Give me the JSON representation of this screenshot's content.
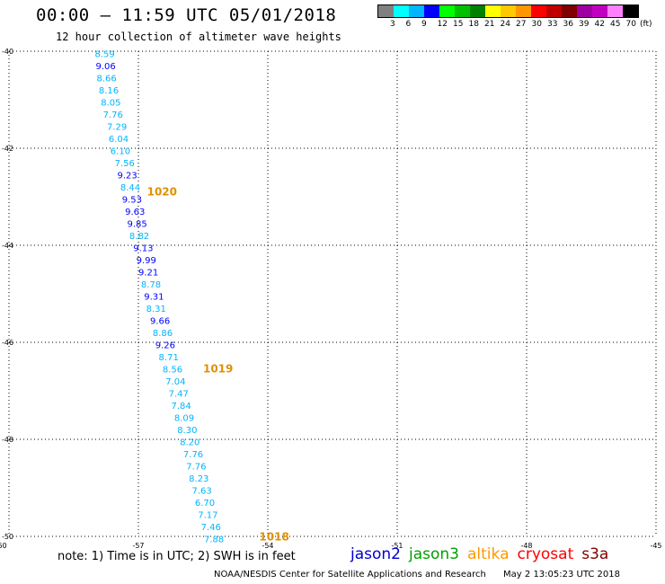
{
  "header": {
    "title": "00:00 – 11:59 UTC 05/01/2018",
    "subtitle": "12 hour collection of altimeter wave heights"
  },
  "colorbar": {
    "colors": [
      "#808080",
      "#00ffff",
      "#00b4ff",
      "#0000ff",
      "#00ff00",
      "#00c000",
      "#008000",
      "#ffff00",
      "#ffc800",
      "#ff9600",
      "#ff0000",
      "#c00000",
      "#800000",
      "#a000a0",
      "#c000c0",
      "#ff80ff",
      "#000000"
    ],
    "labels": [
      "3",
      "6",
      "9",
      "12",
      "15",
      "18",
      "21",
      "24",
      "27",
      "30",
      "33",
      "36",
      "39",
      "42",
      "45",
      "70"
    ],
    "unit": "(ft)"
  },
  "chart_data": {
    "type": "scatter",
    "title": "12 hour collection of altimeter wave heights",
    "xlabel": "",
    "ylabel": "",
    "xlim": [
      -60,
      -45
    ],
    "ylim": [
      -50,
      -40
    ],
    "x_ticks": [
      "-60",
      "-57",
      "-54",
      "-51",
      "-48",
      "-45"
    ],
    "y_ticks": [
      "-40",
      "-42",
      "-44",
      "-46",
      "-48",
      "-50"
    ],
    "grid": true,
    "series": [
      {
        "name": "jason2",
        "points": [
          {
            "x": -58.01,
            "y": -40.05,
            "v": "8.59",
            "c": "#00b4ff"
          },
          {
            "x": -57.99,
            "y": -40.3,
            "v": "9.06",
            "c": "#0000ff"
          },
          {
            "x": -57.97,
            "y": -40.55,
            "v": "8.66",
            "c": "#00b4ff"
          },
          {
            "x": -57.92,
            "y": -40.8,
            "v": "8.16",
            "c": "#00b4ff"
          },
          {
            "x": -57.87,
            "y": -41.05,
            "v": "8.05",
            "c": "#00b4ff"
          },
          {
            "x": -57.82,
            "y": -41.3,
            "v": "7.76",
            "c": "#00b4ff"
          },
          {
            "x": -57.73,
            "y": -41.55,
            "v": "7.29",
            "c": "#00b4ff"
          },
          {
            "x": -57.69,
            "y": -41.8,
            "v": "6.04",
            "c": "#00b4ff"
          },
          {
            "x": -57.65,
            "y": -42.05,
            "v": "6.10",
            "c": "#00b4ff"
          },
          {
            "x": -57.55,
            "y": -42.3,
            "v": "7.56",
            "c": "#00b4ff"
          },
          {
            "x": -57.49,
            "y": -42.55,
            "v": "9.23",
            "c": "#0000ff"
          },
          {
            "x": -57.42,
            "y": -42.8,
            "v": "8.44",
            "c": "#00b4ff"
          },
          {
            "x": -57.38,
            "y": -43.05,
            "v": "9.53",
            "c": "#0000ff"
          },
          {
            "x": -57.31,
            "y": -43.3,
            "v": "9.63",
            "c": "#0000ff"
          },
          {
            "x": -57.26,
            "y": -43.55,
            "v": "9.85",
            "c": "#0000ff"
          },
          {
            "x": -57.21,
            "y": -43.8,
            "v": "8.82",
            "c": "#00b4ff"
          },
          {
            "x": -57.12,
            "y": -44.05,
            "v": "9.13",
            "c": "#0000ff"
          },
          {
            "x": -57.05,
            "y": -44.3,
            "v": "9.99",
            "c": "#0000ff"
          },
          {
            "x": -57.0,
            "y": -44.55,
            "v": "9.21",
            "c": "#0000ff"
          },
          {
            "x": -56.94,
            "y": -44.8,
            "v": "8.78",
            "c": "#00b4ff"
          },
          {
            "x": -56.87,
            "y": -45.05,
            "v": "9.31",
            "c": "#0000ff"
          },
          {
            "x": -56.82,
            "y": -45.3,
            "v": "8.31",
            "c": "#00b4ff"
          },
          {
            "x": -56.73,
            "y": -45.55,
            "v": "9.66",
            "c": "#0000ff"
          },
          {
            "x": -56.67,
            "y": -45.8,
            "v": "8.86",
            "c": "#00b4ff"
          },
          {
            "x": -56.61,
            "y": -46.05,
            "v": "9.26",
            "c": "#0000ff"
          },
          {
            "x": -56.53,
            "y": -46.3,
            "v": "8.71",
            "c": "#00b4ff"
          },
          {
            "x": -56.44,
            "y": -46.55,
            "v": "8.56",
            "c": "#00b4ff"
          },
          {
            "x": -56.37,
            "y": -46.8,
            "v": "7.04",
            "c": "#00b4ff"
          },
          {
            "x": -56.3,
            "y": -47.05,
            "v": "7.47",
            "c": "#00b4ff"
          },
          {
            "x": -56.24,
            "y": -47.3,
            "v": "7.84",
            "c": "#00b4ff"
          },
          {
            "x": -56.17,
            "y": -47.55,
            "v": "8.09",
            "c": "#00b4ff"
          },
          {
            "x": -56.1,
            "y": -47.8,
            "v": "8.30",
            "c": "#00b4ff"
          },
          {
            "x": -56.04,
            "y": -48.05,
            "v": "8.20",
            "c": "#00b4ff"
          },
          {
            "x": -55.96,
            "y": -48.3,
            "v": "7.76",
            "c": "#00b4ff"
          },
          {
            "x": -55.89,
            "y": -48.55,
            "v": "7.76",
            "c": "#00b4ff"
          },
          {
            "x": -55.83,
            "y": -48.8,
            "v": "8.23",
            "c": "#00b4ff"
          },
          {
            "x": -55.76,
            "y": -49.05,
            "v": "7.63",
            "c": "#00b4ff"
          },
          {
            "x": -55.69,
            "y": -49.3,
            "v": "6.70",
            "c": "#00b4ff"
          },
          {
            "x": -55.62,
            "y": -49.55,
            "v": "7.17",
            "c": "#00b4ff"
          },
          {
            "x": -55.55,
            "y": -49.8,
            "v": "7.46",
            "c": "#00b4ff"
          },
          {
            "x": -55.48,
            "y": -50.05,
            "v": "7.88",
            "c": "#00b4ff"
          }
        ]
      }
    ],
    "pass_labels": [
      {
        "x": -56.8,
        "y": -42.88,
        "v": "1020",
        "c": "#e09000"
      },
      {
        "x": -55.5,
        "y": -46.53,
        "v": "1019",
        "c": "#e09000"
      },
      {
        "x": -54.2,
        "y": -49.99,
        "v": "1018",
        "c": "#e09000"
      }
    ]
  },
  "note": "note:  1) Time is in UTC;  2) SWH is in feet",
  "legend": [
    {
      "name": "jason2",
      "color": "#0000cc"
    },
    {
      "name": "jason3",
      "color": "#00a000"
    },
    {
      "name": "altika",
      "color": "#ff9900"
    },
    {
      "name": "cryosat",
      "color": "#ff0000"
    },
    {
      "name": "s3a",
      "color": "#800000"
    }
  ],
  "footer": {
    "credit": "NOAA/NESDIS Center for Satellite Applications and Research",
    "timestamp": "May  2 13:05:23 UTC 2018"
  }
}
